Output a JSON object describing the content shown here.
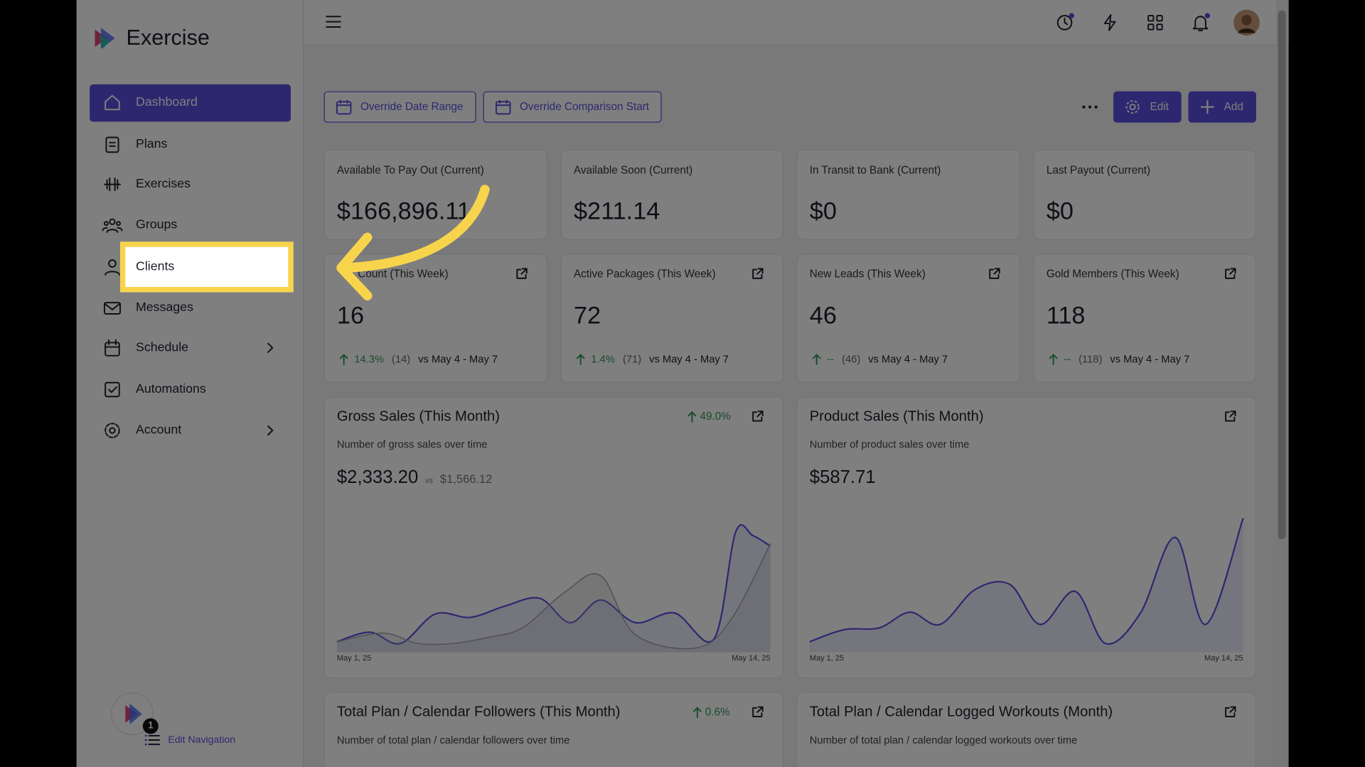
{
  "app": {
    "logo": "Exercise"
  },
  "nav": [
    {
      "label": "Dashboard",
      "active": true
    },
    {
      "label": "Plans"
    },
    {
      "label": "Exercises"
    },
    {
      "label": "Groups"
    },
    {
      "label": "Clients",
      "highlighted": true
    },
    {
      "label": "Messages"
    },
    {
      "label": "Schedule",
      "submenu": true
    },
    {
      "label": "Automations"
    },
    {
      "label": "Account",
      "submenu": true
    }
  ],
  "sidebar_footer": {
    "badge": "1",
    "link": "Edit Navigation"
  },
  "toolbar": {
    "buttons": [
      "Override Date Range",
      "Override Comparison Start"
    ],
    "edit": "Edit",
    "add": "Add"
  },
  "stats": [
    {
      "label": "Available To Pay Out (Current)",
      "value": "$166,896.11"
    },
    {
      "label": "Available Soon (Current)",
      "value": "$211.14"
    },
    {
      "label": "In Transit to Bank (Current)",
      "value": "$0"
    },
    {
      "label": "Last Payout (Current)",
      "value": "$0"
    }
  ],
  "weekly": [
    {
      "label": "Count (This Week)",
      "value": "16",
      "change": "14.3%",
      "count": "(14)",
      "compare": "vs May 4 - May 7"
    },
    {
      "label": "Active Packages (This Week)",
      "value": "72",
      "change": "1.4%",
      "count": "(71)",
      "compare": "vs May 4 - May 7"
    },
    {
      "label": "New Leads (This Week)",
      "value": "46",
      "change": "--",
      "count": "(46)",
      "compare": "vs May 4 - May 7"
    },
    {
      "label": "Gold Members (This Week)",
      "value": "118",
      "change": "--",
      "count": "(118)",
      "compare": "vs May 4 - May 7"
    }
  ],
  "charts": [
    {
      "title": "Gross Sales (This Month)",
      "change": "49.0%",
      "subtitle": "Number of gross sales over time",
      "value": "$2,333.20",
      "compare_label": "vs",
      "compare_value": "$1,566.12",
      "x_start": "May 1, 25",
      "x_end": "May 14, 25"
    },
    {
      "title": "Product Sales (This Month)",
      "subtitle": "Number of product sales over time",
      "value": "$587.71",
      "x_start": "May 1, 25",
      "x_end": "May 14, 25"
    }
  ],
  "bottom_cards": [
    {
      "title": "Total Plan / Calendar Followers (This Month)",
      "change": "0.6%",
      "subtitle": "Number of total plan / calendar followers over time"
    },
    {
      "title": "Total Plan / Calendar Logged Workouts (Month)",
      "subtitle": "Number of total plan / calendar logged workouts over time"
    }
  ]
}
